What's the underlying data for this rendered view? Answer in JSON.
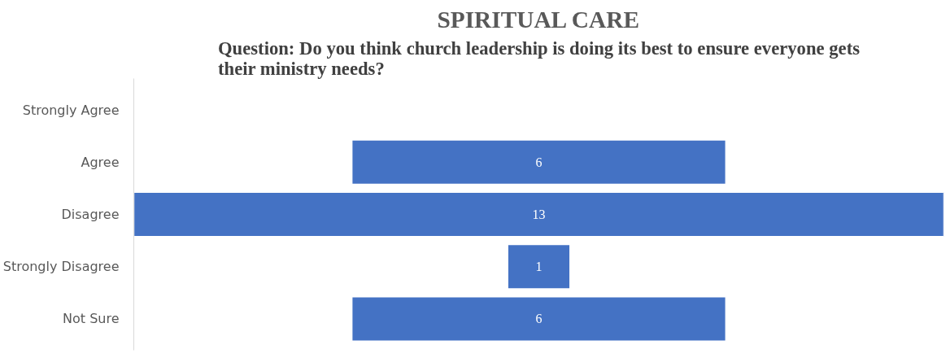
{
  "chart_data": {
    "type": "other",
    "title": "SPIRITUAL CARE",
    "subtitle": "Question: Do you think church leadership is doing its best to ensure everyone gets their ministry needs?",
    "categories": [
      "Strongly Agree",
      "Agree",
      "Disagree",
      "Strongly Disagree",
      "Not Sure"
    ],
    "values": [
      null,
      6,
      13,
      1,
      6
    ],
    "color": "#4472c4",
    "data_labels": true
  }
}
